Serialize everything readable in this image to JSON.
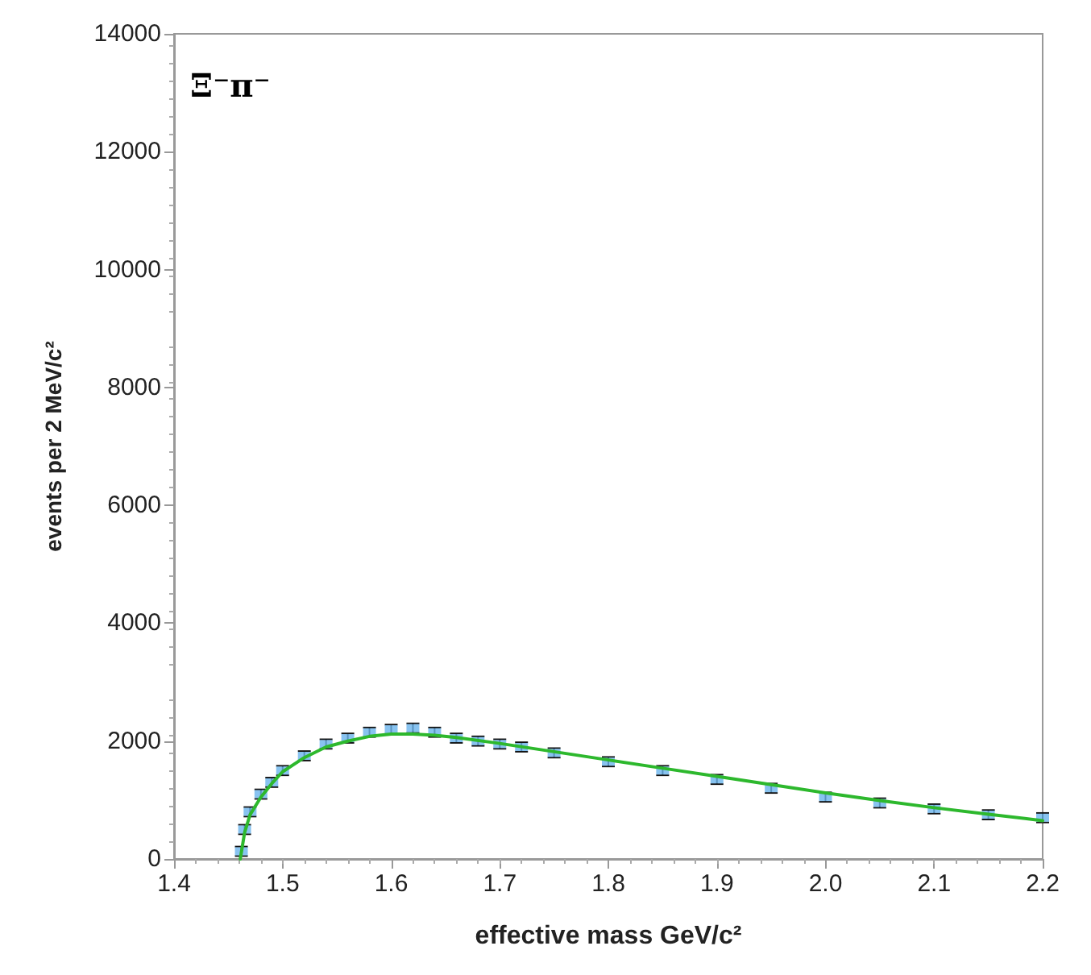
{
  "chart_data": {
    "type": "scatter",
    "title": "Ξ⁻π⁻",
    "xlabel": "effective mass GeV/c²",
    "ylabel": "events per 2 MeV/c²",
    "xlim": [
      1.4,
      2.2
    ],
    "xticks": [
      1.4,
      1.5,
      1.6,
      1.7,
      1.8,
      1.9,
      {
        "value": 2,
        "label": "2.0"
      },
      2.1,
      2.2
    ],
    "ylim": [
      0,
      14000
    ],
    "yticks": [
      0,
      2000,
      4000,
      6000,
      8000,
      10000,
      12000,
      14000
    ],
    "grid": false,
    "series": [
      {
        "color": "#6ab4ec",
        "marker": "square",
        "x": [
          1.462,
          1.465,
          1.47,
          1.48,
          1.49,
          1.5,
          1.52,
          1.54,
          1.56,
          1.58,
          1.6,
          1.62,
          1.64,
          1.66,
          1.68,
          1.7,
          1.72,
          1.75,
          1.8,
          1.85,
          1.9,
          1.95,
          2.0,
          2.05,
          2.1,
          2.15,
          2.2
        ],
        "values": [
          130,
          500,
          800,
          1100,
          1300,
          1500,
          1750,
          1950,
          2050,
          2150,
          2200,
          2220,
          2150,
          2050,
          2000,
          1950,
          1900,
          1800,
          1650,
          1500,
          1350,
          1200,
          1050,
          950,
          850,
          750,
          700
        ],
        "errors": [
          80,
          80,
          80,
          80,
          80,
          80,
          80,
          80,
          80,
          80,
          80,
          80,
          80,
          80,
          80,
          80,
          80,
          80,
          80,
          80,
          80,
          80,
          80,
          80,
          80,
          80,
          80
        ]
      },
      {
        "type": "line",
        "color": "#2db82d",
        "marker": "none",
        "line_style": "solid",
        "x": [
          1.461,
          1.465,
          1.47,
          1.48,
          1.49,
          1.5,
          1.52,
          1.54,
          1.56,
          1.58,
          1.6,
          1.62,
          1.64,
          1.66,
          1.7,
          1.75,
          1.8,
          1.85,
          1.9,
          1.95,
          2.0,
          2.05,
          2.1,
          2.15,
          2.2
        ],
        "values": [
          0,
          450,
          750,
          1050,
          1280,
          1480,
          1720,
          1900,
          2000,
          2080,
          2120,
          2120,
          2100,
          2060,
          1960,
          1820,
          1680,
          1540,
          1400,
          1260,
          1120,
          990,
          870,
          760,
          650
        ]
      }
    ]
  }
}
